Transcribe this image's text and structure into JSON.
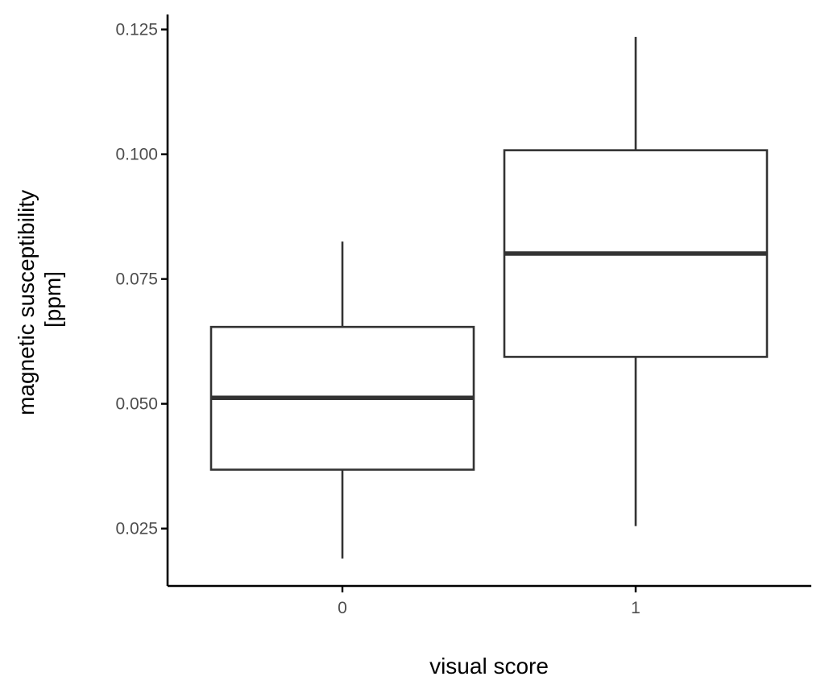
{
  "chart_data": {
    "type": "boxplot",
    "title": "",
    "xlabel": "visual score",
    "ylabel_lines": [
      "magnetic susceptibility",
      "[ppm]"
    ],
    "categories": [
      "0",
      "1"
    ],
    "ylim": [
      0.0135,
      0.128
    ],
    "yticks": [
      0.025,
      0.05,
      0.075,
      0.1,
      0.125
    ],
    "ytick_labels": [
      "0.025",
      "0.050",
      "0.075",
      "0.100",
      "0.125"
    ],
    "grid": false,
    "legend": "none",
    "boxes": [
      {
        "category": "0",
        "whisker_low": 0.019,
        "q1": 0.0368,
        "median": 0.0512,
        "q3": 0.0654,
        "whisker_high": 0.0825
      },
      {
        "category": "1",
        "whisker_low": 0.0255,
        "q1": 0.0594,
        "median": 0.0801,
        "q3": 0.1008,
        "whisker_high": 0.1235
      }
    ],
    "colors": {
      "box_stroke": "#333333",
      "box_fill": "#ffffff",
      "axis": "#000000",
      "tick_text": "#4d4d4d",
      "title_text": "#000000"
    }
  }
}
